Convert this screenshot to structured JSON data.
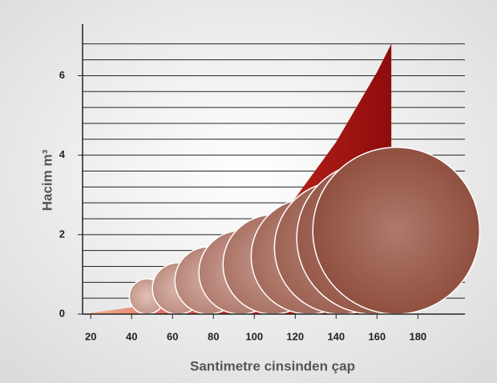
{
  "chart_data": {
    "type": "area",
    "x_label": "Santimetre cinsinden çap",
    "y_label": "Hacim m³",
    "x": [
      20,
      40,
      60,
      80,
      100,
      120,
      140,
      160,
      167
    ],
    "values": [
      0.03,
      0.17,
      0.5,
      1.03,
      1.83,
      2.92,
      4.33,
      6.09,
      6.8
    ],
    "colors": [
      "#f6b49a",
      "#c42a1e",
      "#8e0c0c"
    ],
    "bubbles": {
      "x": [
        47.5,
        62.7,
        77.6,
        93.3,
        109,
        126.7,
        142.4,
        158,
        169.4
      ],
      "size": [
        17.3,
        25.1,
        32.9,
        40.8,
        48.6,
        56.5,
        65.1,
        74.5,
        81.6
      ],
      "colors": [
        "#e2c0b6",
        "#8c4a3a"
      ]
    },
    "xlim": [
      16,
      203
    ],
    "ylim": [
      0,
      7.3
    ],
    "xticks": [
      20,
      40,
      60,
      80,
      100,
      120,
      140,
      160,
      180
    ],
    "yticks": [
      0,
      2,
      4,
      6
    ],
    "grid_lines": [
      0.4,
      0.8,
      1.2,
      1.6,
      2,
      2.4,
      2.8,
      3.2,
      3.6,
      4,
      4.4,
      4.8,
      5.2,
      5.6,
      6,
      6.4,
      6.8
    ],
    "grid": true
  }
}
